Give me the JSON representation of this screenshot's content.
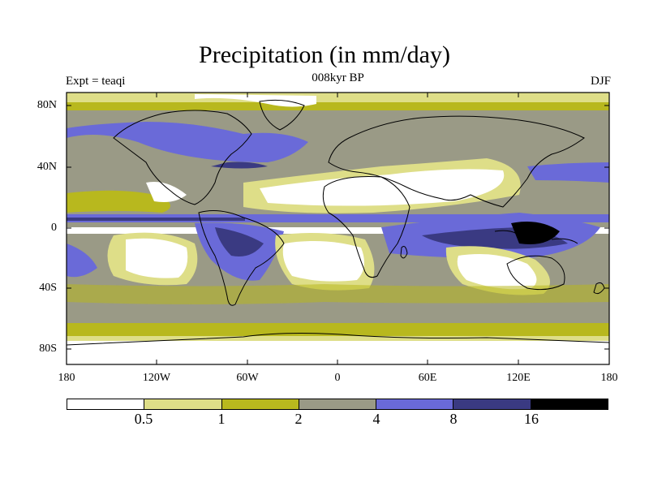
{
  "title": "Precipitation (in mm/day)",
  "experiment_label": "Expt = teaqi",
  "period_label": "008kyr BP",
  "season_label": "DJF",
  "y_ticks": [
    "80N",
    "40N",
    "0",
    "40S",
    "80S"
  ],
  "x_ticks": [
    "180",
    "120W",
    "60W",
    "0",
    "60E",
    "120E",
    "180"
  ],
  "colorbar": {
    "labels": [
      "0.5",
      "1",
      "2",
      "4",
      "8",
      "16"
    ],
    "colors": [
      "#ffffff",
      "#dede88",
      "#b8b81e",
      "#9a9a86",
      "#6a6ad8",
      "#3a3a82",
      "#000000"
    ]
  }
}
